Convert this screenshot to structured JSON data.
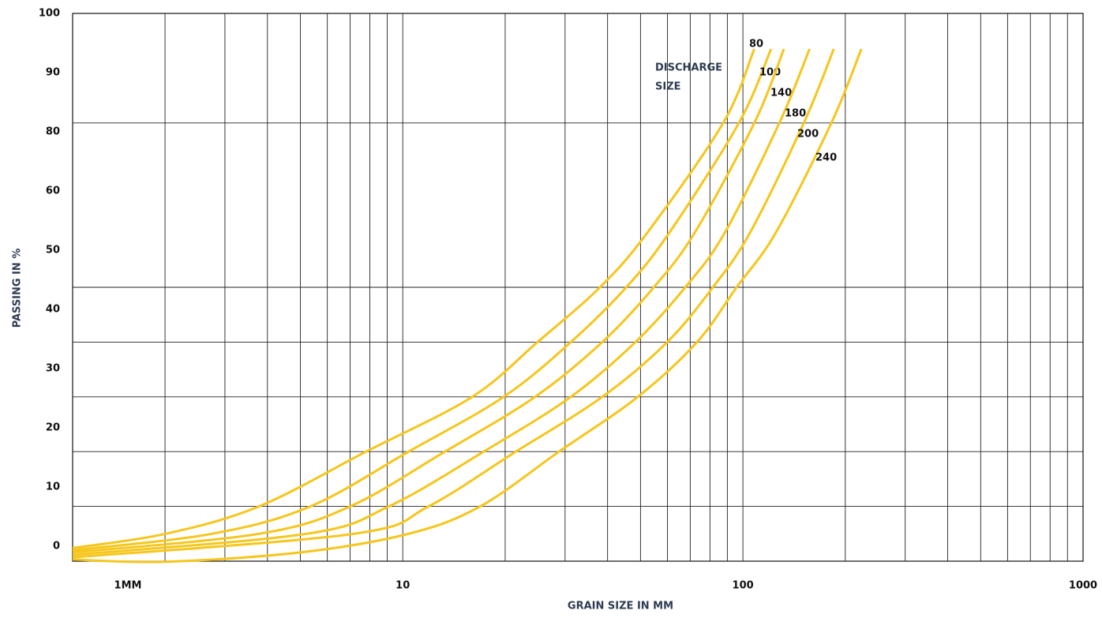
{
  "chart_data": {
    "type": "line",
    "xlabel": "GRAIN SIZE IN MM",
    "ylabel": "PASSING IN %",
    "annotation": [
      "DISCHARGE",
      "SIZE"
    ],
    "xscale": "log",
    "xlim": [
      1.07,
      1000
    ],
    "xticks": [
      {
        "value": 1,
        "label": "1MM"
      },
      10,
      100,
      1000
    ],
    "xgrid": [
      2,
      3,
      4,
      5,
      6,
      7,
      8,
      9,
      10,
      20,
      30,
      40,
      50,
      60,
      70,
      80,
      90,
      100,
      200,
      300,
      400,
      500,
      600,
      700,
      800,
      900
    ],
    "ylim": [
      0,
      100
    ],
    "yticks": [
      100,
      90,
      80,
      60,
      50,
      40,
      30,
      20,
      10,
      0
    ],
    "ygrid": [
      10,
      20,
      30,
      40,
      50,
      80
    ],
    "color": "#f6c61c",
    "series": [
      {
        "name": "80",
        "x": [
          1.07,
          2.01,
          3.78,
          7.8,
          16.0,
          24.9,
          38.0,
          52.4,
          87.5,
          108
        ],
        "values": [
          2.4,
          5,
          10,
          20,
          30,
          40,
          50,
          60,
          80,
          93.5
        ]
      },
      {
        "name": "100",
        "x": [
          1.07,
          2.75,
          5.35,
          10.4,
          19.8,
          31.2,
          45.4,
          60.8,
          97.3,
          121
        ],
        "values": [
          2.0,
          5,
          10,
          20,
          30,
          40,
          50,
          60,
          80,
          93.5
        ]
      },
      {
        "name": "140",
        "x": [
          1.07,
          3.78,
          7.0,
          13.3,
          24.5,
          38.6,
          54.7,
          72.2,
          108,
          132
        ],
        "values": [
          1.6,
          5,
          10,
          20,
          30,
          40,
          50,
          60,
          80,
          93.5
        ]
      },
      {
        "name": "180",
        "x": [
          1.07,
          5.21,
          9.1,
          17.3,
          31.2,
          48.3,
          67.7,
          88.5,
          128,
          157
        ],
        "values": [
          1.15,
          5,
          10,
          20,
          30,
          40,
          50,
          60,
          80,
          93.5
        ]
      },
      {
        "name": "200",
        "x": [
          1.07,
          7.18,
          11.9,
          21.5,
          38.6,
          59.9,
          81.6,
          105,
          151,
          185
        ],
        "values": [
          0.7,
          5,
          10,
          20,
          30,
          40,
          50,
          60,
          80,
          93.5
        ]
      },
      {
        "name": "240",
        "x": [
          1.07,
          2.0,
          5.0,
          10.4,
          16.9,
          28.8,
          49.1,
          73.3,
          95.8,
          125,
          182,
          223
        ],
        "values": [
          0.3,
          -0.1,
          1.6,
          5,
          10,
          20,
          30,
          40,
          50,
          60,
          80,
          93.5
        ]
      }
    ]
  }
}
